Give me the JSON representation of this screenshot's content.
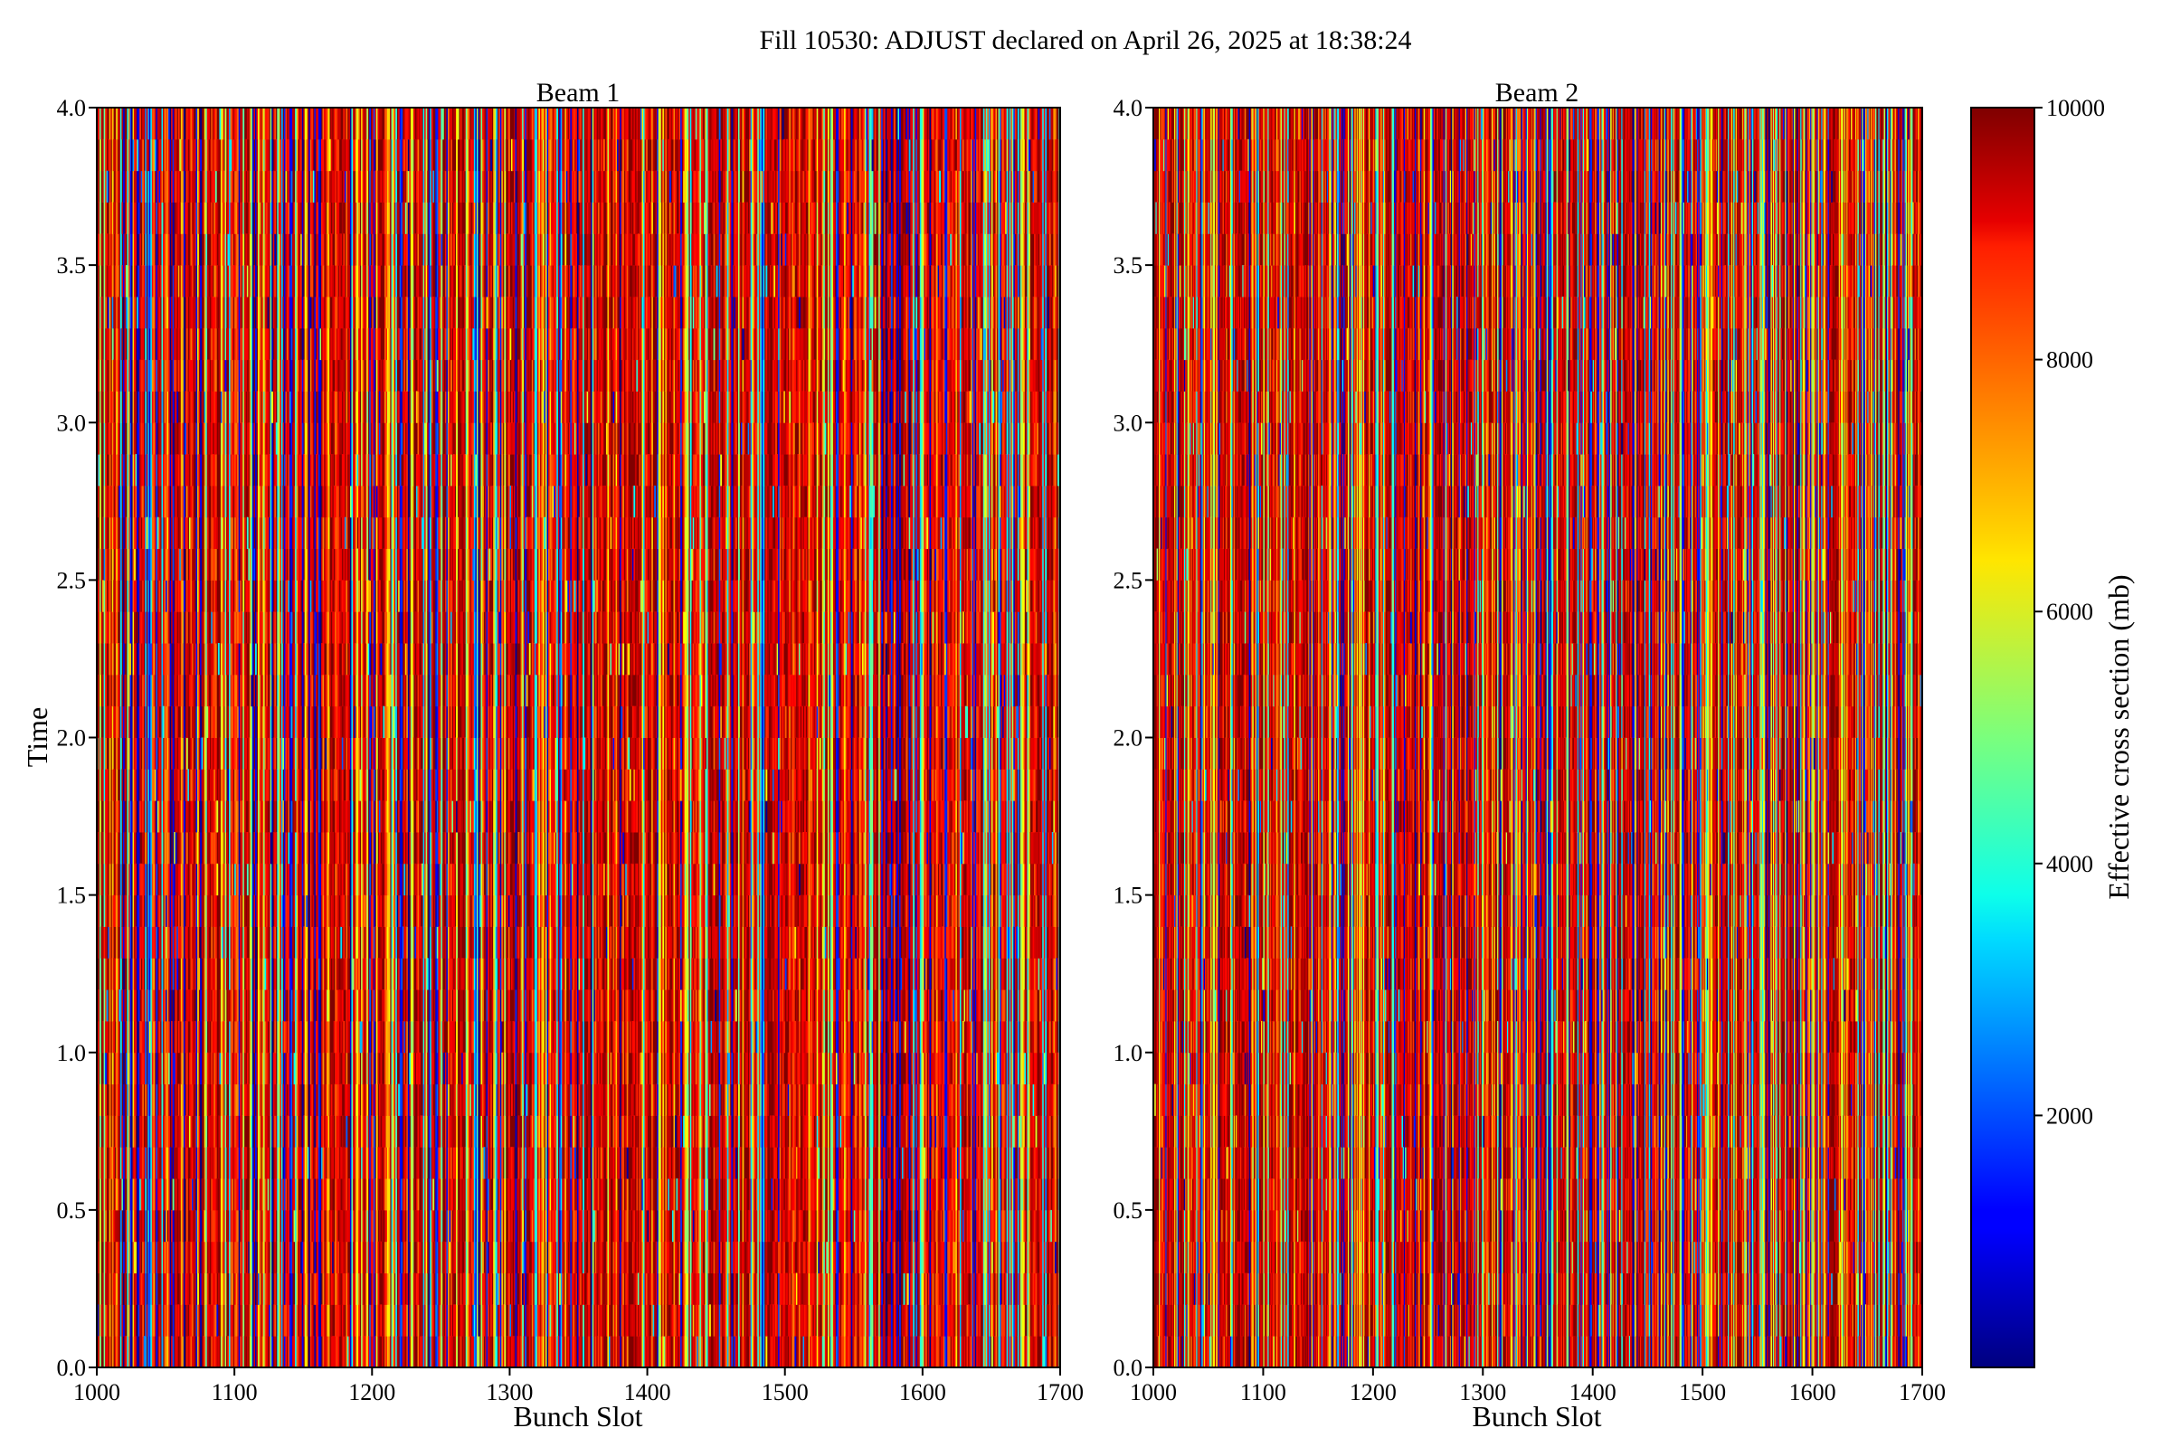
{
  "figure": {
    "suptitle": "Fill 10530: ADJUST declared on April 26, 2025 at 18:38:24"
  },
  "chart_data": [
    {
      "type": "heatmap",
      "title": "Beam 1",
      "xlabel": "Bunch Slot",
      "ylabel": "Time",
      "xlim": [
        1000,
        1700
      ],
      "ylim": [
        0.0,
        4.0
      ],
      "xticks": [
        "1000",
        "1100",
        "1200",
        "1300",
        "1400",
        "1500",
        "1600",
        "1700"
      ],
      "yticks": [
        "0.0",
        "0.5",
        "1.0",
        "1.5",
        "2.0",
        "2.5",
        "3.0",
        "3.5",
        "4.0"
      ],
      "colormap": "jet",
      "value_range": [
        0,
        10000
      ],
      "dominant_value": 10000,
      "seed": 10530
    },
    {
      "type": "heatmap",
      "title": "Beam 2",
      "xlabel": "Bunch Slot",
      "ylabel": "",
      "xlim": [
        1000,
        1700
      ],
      "ylim": [
        0.0,
        4.0
      ],
      "xticks": [
        "1000",
        "1100",
        "1200",
        "1300",
        "1400",
        "1500",
        "1600",
        "1700"
      ],
      "yticks": [
        "0.0",
        "0.5",
        "1.0",
        "1.5",
        "2.0",
        "2.5",
        "3.0",
        "3.5",
        "4.0"
      ],
      "colormap": "jet",
      "value_range": [
        0,
        10000
      ],
      "dominant_value": 10000,
      "seed": 20530
    }
  ],
  "colorbar": {
    "label": "Effective cross section (mb)",
    "range": [
      0,
      10000
    ],
    "ticks": [
      "2000",
      "4000",
      "6000",
      "8000",
      "10000"
    ],
    "colormap": "jet"
  }
}
